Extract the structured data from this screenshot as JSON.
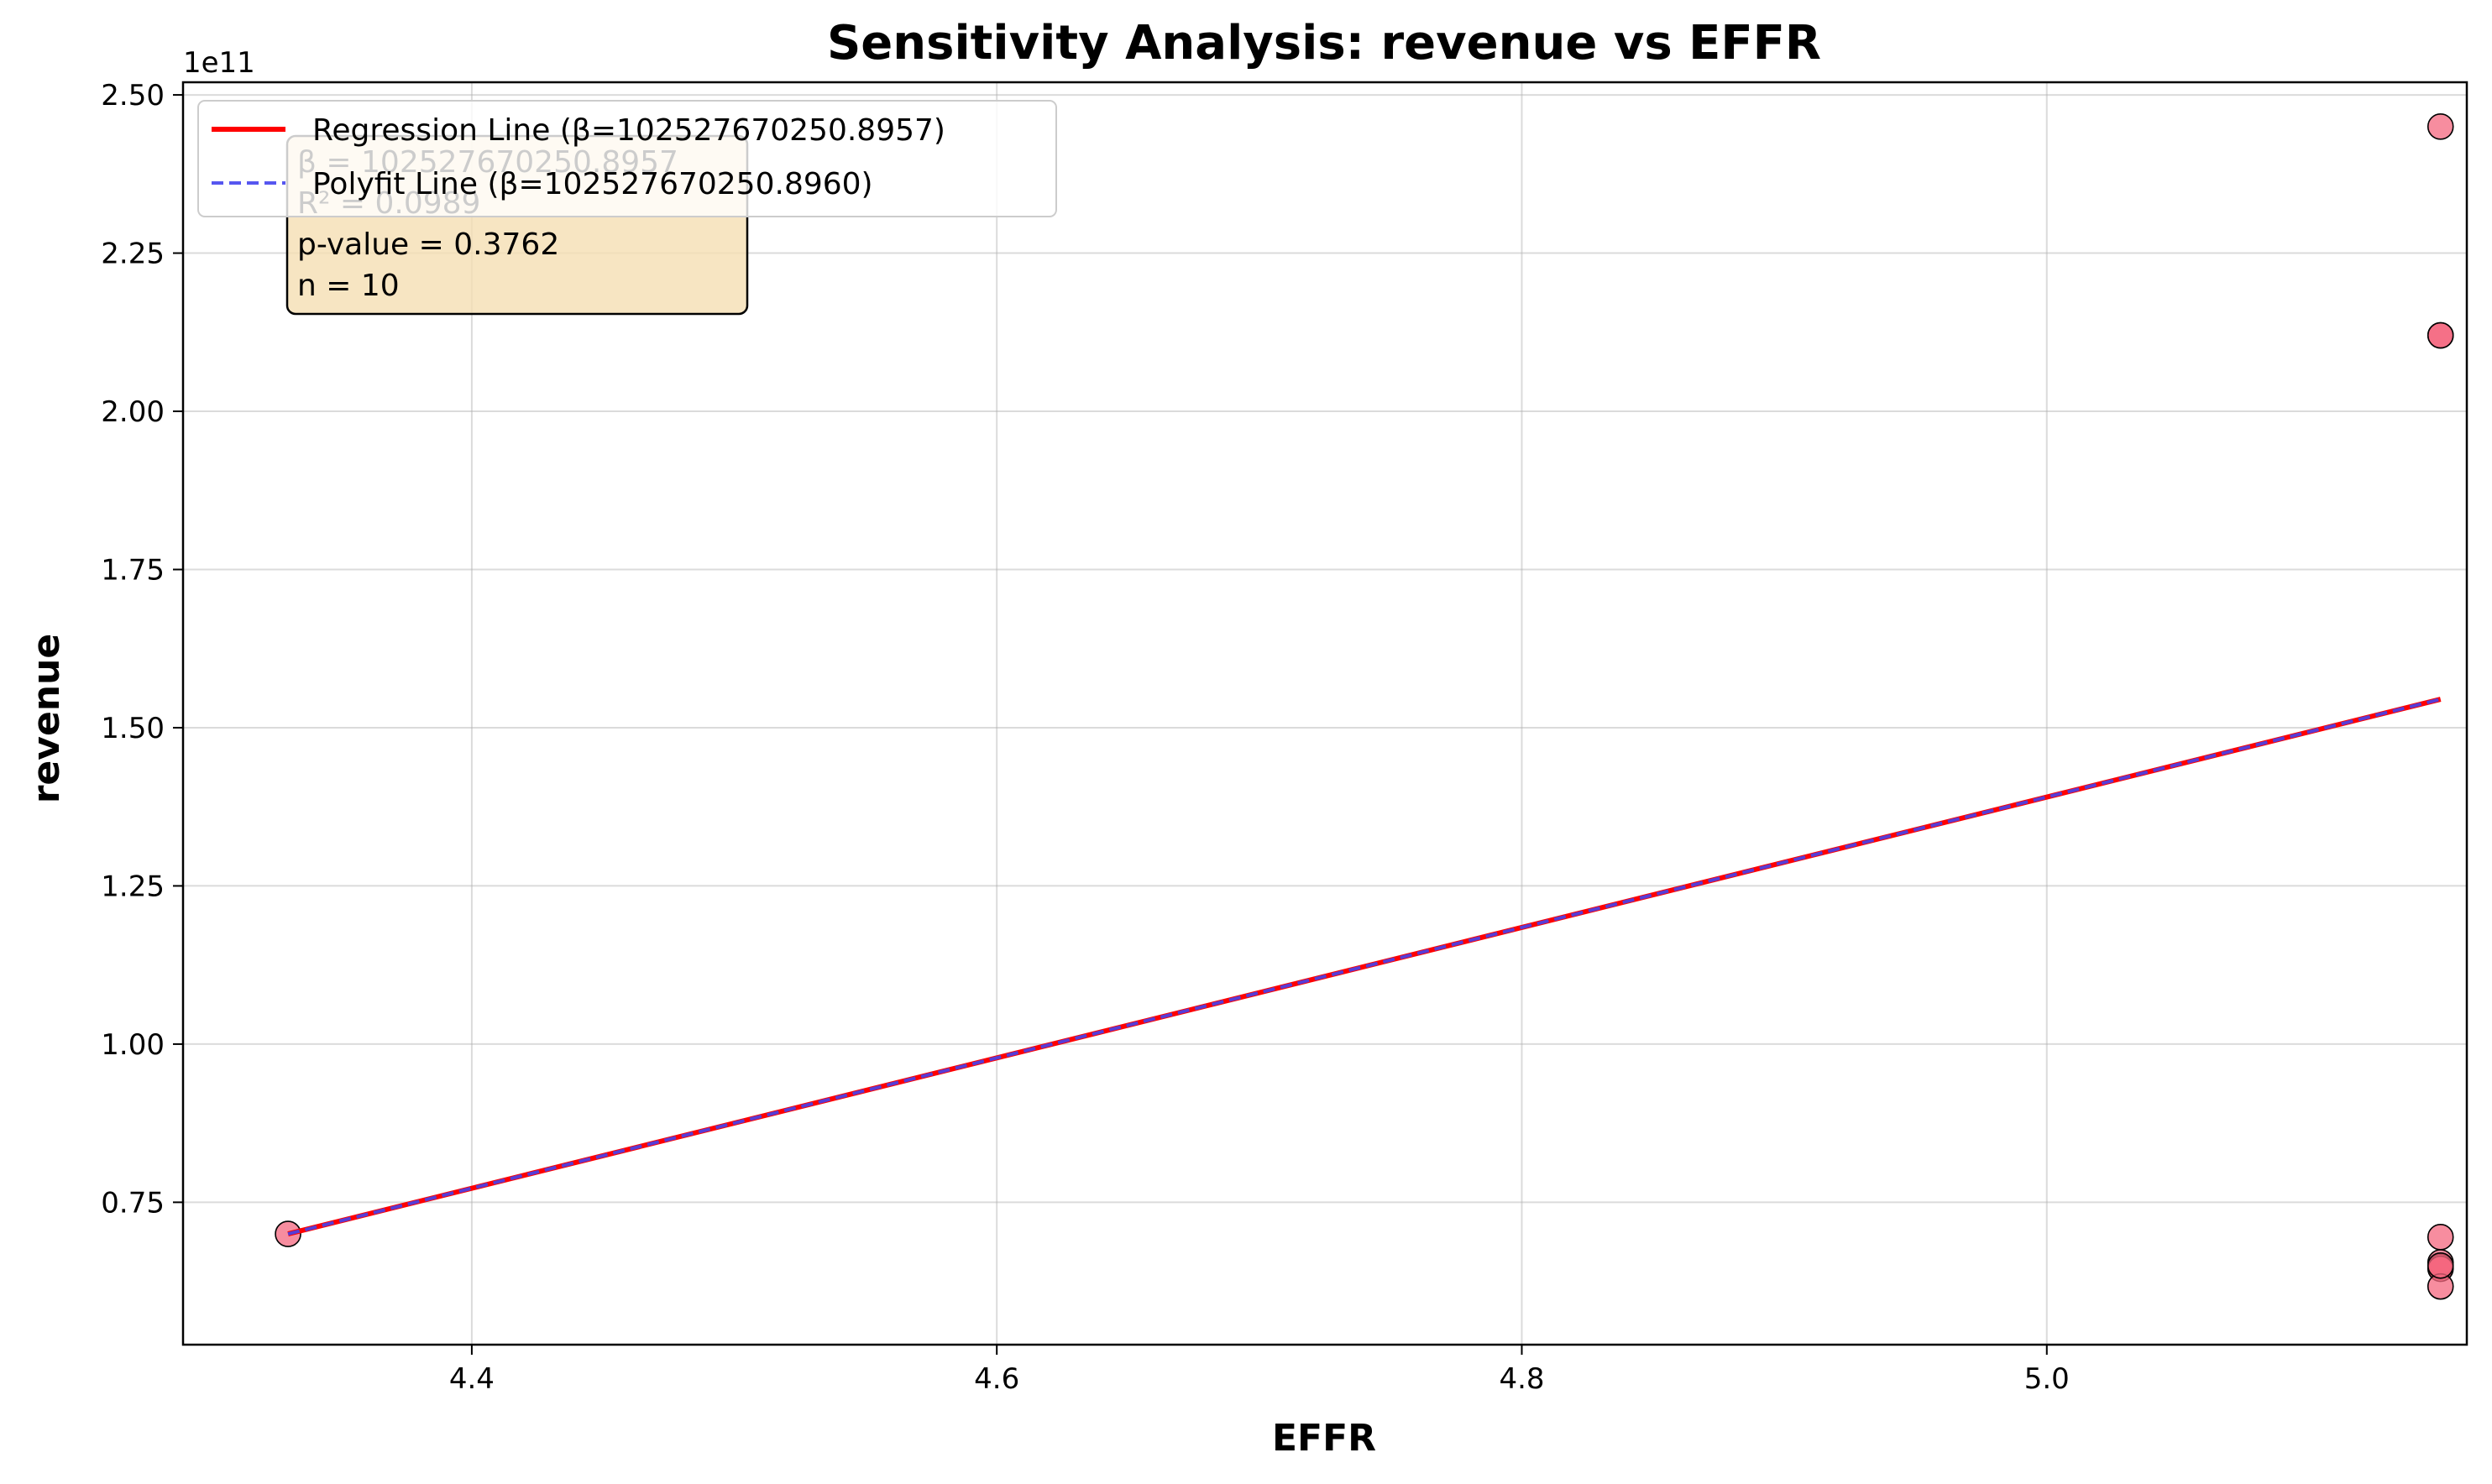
{
  "chart_data": {
    "type": "scatter",
    "title": "Sensitivity Analysis: revenue vs EFFR",
    "xlabel": "EFFR",
    "ylabel": "revenue",
    "xlim": [
      4.29,
      5.16
    ],
    "ylim": [
      0.525,
      2.52
    ],
    "y_offset_label": "1e11",
    "x_ticks": [
      4.4,
      4.6,
      4.8,
      5.0
    ],
    "x_tick_labels": [
      "4.4",
      "4.6",
      "4.8",
      "5.0"
    ],
    "y_ticks": [
      0.75,
      1.0,
      1.25,
      1.5,
      1.75,
      2.0,
      2.25,
      2.5
    ],
    "y_tick_labels": [
      "0.75",
      "1.00",
      "1.25",
      "1.50",
      "1.75",
      "2.00",
      "2.25",
      "2.50"
    ],
    "grid": true,
    "legend_position": "top-left",
    "series": [
      {
        "name": "Regression Line (β=102527670250.8957)",
        "kind": "line",
        "style": "solid",
        "color": "#ff0000",
        "x": [
          4.33,
          5.15
        ],
        "y": [
          0.7,
          1.545
        ]
      },
      {
        "name": "Polyfit Line (β=102527670250.8960)",
        "kind": "line",
        "style": "dashed",
        "color": "#4444ee",
        "x": [
          4.33,
          5.15
        ],
        "y": [
          0.7,
          1.545
        ]
      },
      {
        "kind": "scatter",
        "color": "#f4677f",
        "x": [
          4.33,
          5.15,
          5.15,
          5.15,
          5.15,
          5.15,
          5.15,
          5.15,
          5.15,
          5.15
        ],
        "y": [
          0.7,
          2.45,
          2.12,
          2.12,
          0.695,
          0.655,
          0.648,
          0.645,
          0.617,
          0.65
        ]
      }
    ],
    "stats_box": {
      "lines": [
        "β = 102527670250.8957",
        "R² = 0.0989",
        "p-value = 0.3762",
        "n = 10"
      ]
    }
  }
}
